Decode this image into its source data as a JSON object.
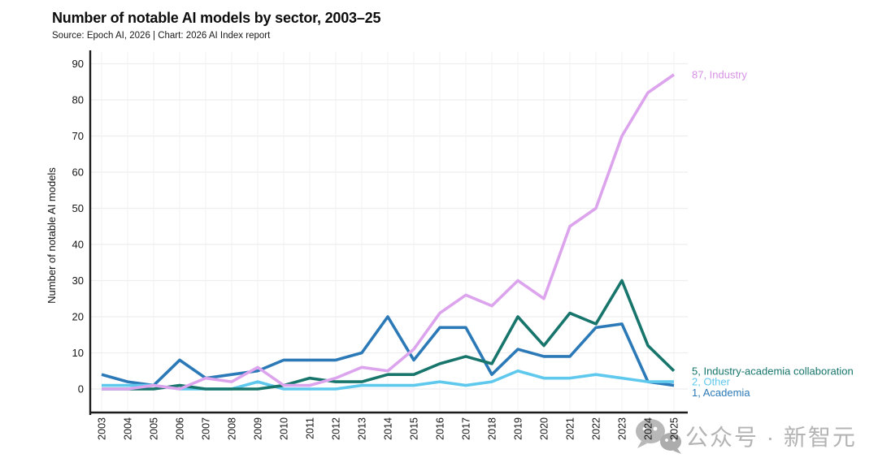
{
  "page": {
    "title": "Number of notable AI models by sector, 2003–25",
    "subtitle": "Source: Epoch AI, 2026 | Chart: 2026 AI Index report"
  },
  "watermark": {
    "icon": "wechat-icon",
    "text": "公众号 · 新智元"
  },
  "chart_data": {
    "type": "line",
    "title": "Number of notable AI models by sector, 2003–25",
    "subtitle": "Source: Epoch AI, 2026 | Chart: 2026 AI Index report",
    "xlabel": "",
    "ylabel": "Number of notable AI models",
    "ylim": [
      0,
      90
    ],
    "ytick_step": 10,
    "grid": true,
    "legend_position": "line-end-labels-right",
    "x": [
      2003,
      2004,
      2005,
      2006,
      2007,
      2008,
      2009,
      2010,
      2011,
      2012,
      2013,
      2014,
      2015,
      2016,
      2017,
      2018,
      2019,
      2020,
      2021,
      2022,
      2023,
      2024,
      2025
    ],
    "series": [
      {
        "name": "Industry",
        "end_label": "87, Industry",
        "color": "#dda4ee",
        "label_color": "#d791e6",
        "label_dy": 0,
        "values": [
          0,
          0,
          1,
          0,
          3,
          2,
          6,
          1,
          1,
          3,
          6,
          5,
          11,
          21,
          26,
          23,
          30,
          25,
          45,
          50,
          70,
          82,
          87
        ]
      },
      {
        "name": "Industry-academia collaboration",
        "end_label": "5, Industry-academia collaboration",
        "color": "#17756c",
        "label_color": "#15756b",
        "label_dy": 0,
        "values": [
          0,
          0,
          0,
          1,
          0,
          0,
          0,
          1,
          3,
          2,
          2,
          4,
          4,
          7,
          9,
          7,
          20,
          12,
          21,
          18,
          30,
          12,
          5
        ]
      },
      {
        "name": "Other",
        "end_label": "2, Other",
        "color": "#5fc8ed",
        "label_color": "#5fc8ed",
        "label_dy": 0,
        "values": [
          1,
          1,
          1,
          0,
          0,
          0,
          2,
          0,
          0,
          0,
          1,
          1,
          1,
          2,
          1,
          2,
          5,
          3,
          3,
          4,
          3,
          2,
          2
        ]
      },
      {
        "name": "Academia",
        "end_label": "1, Academia",
        "color": "#2c79b7",
        "label_color": "#2c79b7",
        "label_dy": 9,
        "values": [
          4,
          2,
          1,
          8,
          3,
          4,
          5,
          8,
          8,
          8,
          10,
          20,
          8,
          17,
          17,
          4,
          11,
          9,
          9,
          17,
          18,
          2,
          1
        ]
      }
    ]
  }
}
